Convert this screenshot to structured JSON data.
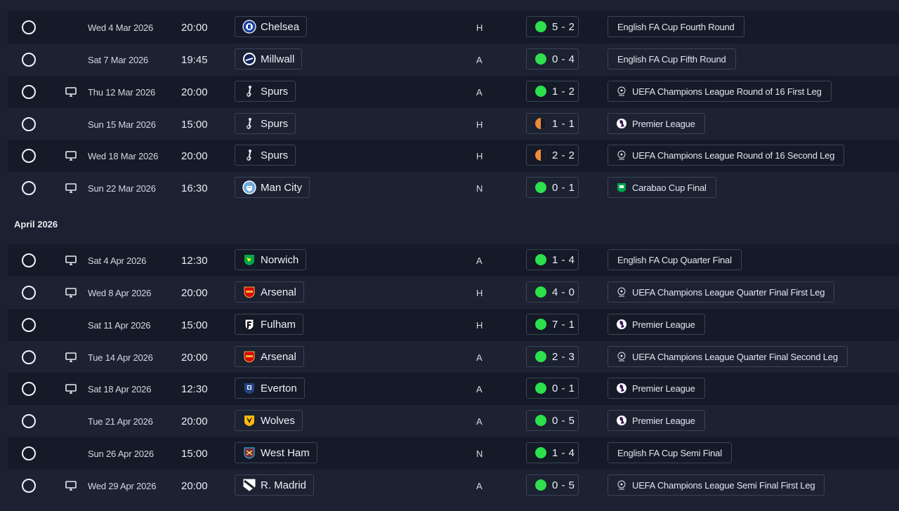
{
  "month_header": "April 2026",
  "colors": {
    "win": "#2ee04c",
    "draw": "#f08a3a",
    "row_dark": "#141a27",
    "row_light": "#1c2232"
  },
  "fixtures": [
    {
      "date": "Wed 4 Mar 2026",
      "time": "20:00",
      "tv": false,
      "team": "Chelsea",
      "crest": "chelsea-crest-icon",
      "venue": "H",
      "score": "5 - 2",
      "result": "win",
      "competition": "English FA Cup Fourth Round",
      "comp_icon": ""
    },
    {
      "date": "Sat 7 Mar 2026",
      "time": "19:45",
      "tv": false,
      "team": "Millwall",
      "crest": "millwall-crest-icon",
      "venue": "A",
      "score": "0 - 4",
      "result": "win",
      "competition": "English FA Cup Fifth Round",
      "comp_icon": ""
    },
    {
      "date": "Thu 12 Mar 2026",
      "time": "20:00",
      "tv": true,
      "team": "Spurs",
      "crest": "spurs-crest-icon",
      "venue": "A",
      "score": "1 - 2",
      "result": "win",
      "competition": "UEFA Champions League Round of 16  First Leg",
      "comp_icon": "ucl-icon"
    },
    {
      "date": "Sun 15 Mar 2026",
      "time": "15:00",
      "tv": false,
      "team": "Spurs",
      "crest": "spurs-crest-icon",
      "venue": "H",
      "score": "1 - 1",
      "result": "draw",
      "competition": "Premier League",
      "comp_icon": "premier-league-icon"
    },
    {
      "date": "Wed 18 Mar 2026",
      "time": "20:00",
      "tv": true,
      "team": "Spurs",
      "crest": "spurs-crest-icon",
      "venue": "H",
      "score": "2 - 2",
      "result": "draw",
      "competition": "UEFA Champions League Round of 16  Second Leg",
      "comp_icon": "ucl-icon"
    },
    {
      "date": "Sun 22 Mar 2026",
      "time": "16:30",
      "tv": true,
      "team": "Man City",
      "crest": "man-city-crest-icon",
      "venue": "N",
      "score": "0 - 1",
      "result": "win",
      "competition": "Carabao Cup Final",
      "comp_icon": "carabao-cup-icon"
    },
    {
      "date": "Sat 4 Apr 2026",
      "time": "12:30",
      "tv": true,
      "team": "Norwich",
      "crest": "norwich-crest-icon",
      "venue": "A",
      "score": "1 - 4",
      "result": "win",
      "competition": "English FA Cup Quarter Final",
      "comp_icon": ""
    },
    {
      "date": "Wed 8 Apr 2026",
      "time": "20:00",
      "tv": true,
      "team": "Arsenal",
      "crest": "arsenal-crest-icon",
      "venue": "H",
      "score": "4 - 0",
      "result": "win",
      "competition": "UEFA Champions League Quarter Final First Leg",
      "comp_icon": "ucl-icon"
    },
    {
      "date": "Sat 11 Apr 2026",
      "time": "15:00",
      "tv": false,
      "team": "Fulham",
      "crest": "fulham-crest-icon",
      "venue": "H",
      "score": "7 - 1",
      "result": "win",
      "competition": "Premier League",
      "comp_icon": "premier-league-icon"
    },
    {
      "date": "Tue 14 Apr 2026",
      "time": "20:00",
      "tv": true,
      "team": "Arsenal",
      "crest": "arsenal-crest-icon",
      "venue": "A",
      "score": "2 - 3",
      "result": "win",
      "competition": "UEFA Champions League Quarter Final Second Leg",
      "comp_icon": "ucl-icon"
    },
    {
      "date": "Sat 18 Apr 2026",
      "time": "12:30",
      "tv": true,
      "team": "Everton",
      "crest": "everton-crest-icon",
      "venue": "A",
      "score": "0 - 1",
      "result": "win",
      "competition": "Premier League",
      "comp_icon": "premier-league-icon"
    },
    {
      "date": "Tue 21 Apr 2026",
      "time": "20:00",
      "tv": false,
      "team": "Wolves",
      "crest": "wolves-crest-icon",
      "venue": "A",
      "score": "0 - 5",
      "result": "win",
      "competition": "Premier League",
      "comp_icon": "premier-league-icon"
    },
    {
      "date": "Sun 26 Apr 2026",
      "time": "15:00",
      "tv": false,
      "team": "West Ham",
      "crest": "west-ham-crest-icon",
      "venue": "N",
      "score": "1 - 4",
      "result": "win",
      "competition": "English FA Cup Semi Final",
      "comp_icon": ""
    },
    {
      "date": "Wed 29 Apr 2026",
      "time": "20:00",
      "tv": true,
      "team": "R. Madrid",
      "crest": "real-madrid-crest-icon",
      "venue": "A",
      "score": "0 - 5",
      "result": "win",
      "competition": "UEFA Champions League Semi Final First Leg",
      "comp_icon": "ucl-icon"
    }
  ]
}
